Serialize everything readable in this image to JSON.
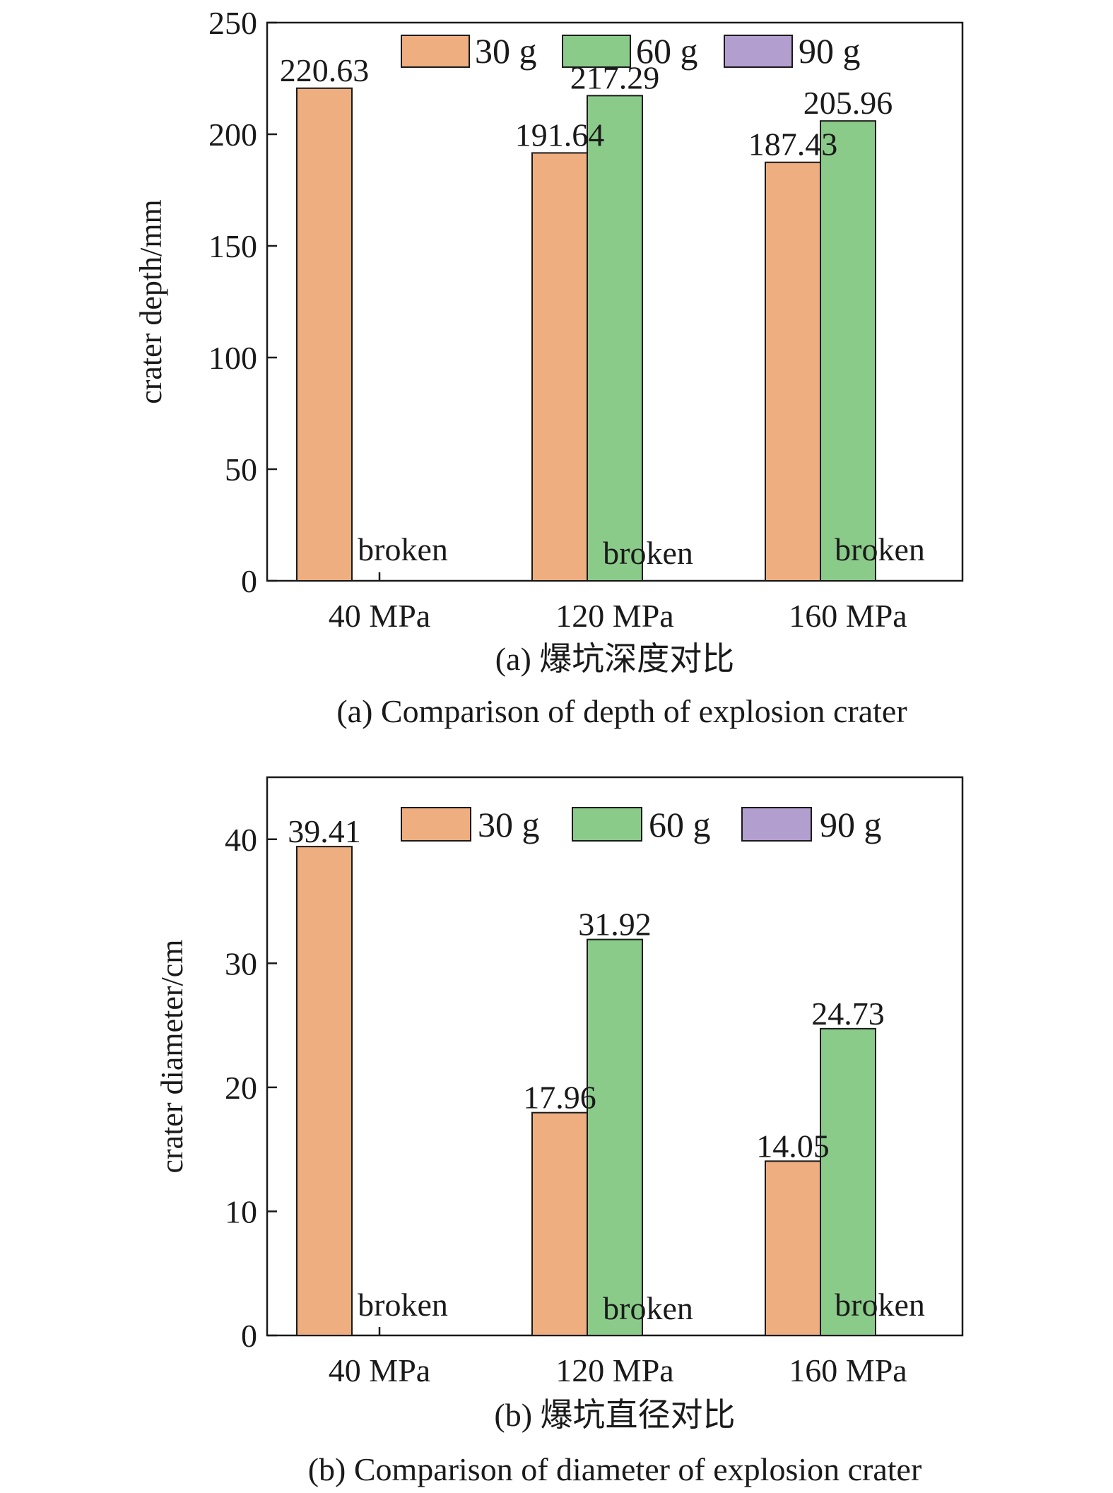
{
  "chart_data": [
    {
      "type": "bar",
      "categories": [
        "40 MPa",
        "120 MPa",
        "160 MPa"
      ],
      "series": [
        {
          "name": "30 g",
          "values": [
            220.63,
            191.64,
            187.43
          ],
          "color": "#EEAE80"
        },
        {
          "name": "60 g",
          "values": [
            null,
            217.29,
            205.96
          ],
          "color": "#8BCB8A"
        },
        {
          "name": "90 g",
          "values": [
            null,
            null,
            null
          ],
          "color": "#B39ED0"
        }
      ],
      "data_labels": [
        {
          "category": "40 MPa",
          "series": "30 g",
          "text": "220.63"
        },
        {
          "category": "120 MPa",
          "series": "30 g",
          "text": "191.64"
        },
        {
          "category": "120 MPa",
          "series": "60 g",
          "text": "217.29"
        },
        {
          "category": "160 MPa",
          "series": "30 g",
          "text": "187.43"
        },
        {
          "category": "160 MPa",
          "series": "60 g",
          "text": "205.96"
        }
      ],
      "annotations": [
        {
          "category": "40 MPa",
          "text": "broken"
        },
        {
          "category": "120 MPa",
          "text": "broken"
        },
        {
          "category": "160 MPa",
          "text": "broken"
        }
      ],
      "ylabel": "crater depth/mm",
      "xlabel": "",
      "ylim": [
        0,
        250
      ],
      "yticks": [
        0,
        50,
        100,
        150,
        200,
        250
      ],
      "legend": "top-right",
      "grid": false,
      "caption_cn": "(a) 爆坑深度对比",
      "caption_en": "(a) Comparison of depth of explosion crater"
    },
    {
      "type": "bar",
      "categories": [
        "40 MPa",
        "120 MPa",
        "160 MPa"
      ],
      "series": [
        {
          "name": "30 g",
          "values": [
            39.41,
            17.96,
            14.05
          ],
          "color": "#EEAE80"
        },
        {
          "name": "60 g",
          "values": [
            null,
            31.92,
            24.73
          ],
          "color": "#8BCB8A"
        },
        {
          "name": "90 g",
          "values": [
            null,
            null,
            null
          ],
          "color": "#B39ED0"
        }
      ],
      "data_labels": [
        {
          "category": "40 MPa",
          "series": "30 g",
          "text": "39.41"
        },
        {
          "category": "120 MPa",
          "series": "30 g",
          "text": "17.96"
        },
        {
          "category": "120 MPa",
          "series": "60 g",
          "text": "31.92"
        },
        {
          "category": "160 MPa",
          "series": "30 g",
          "text": "14.05"
        },
        {
          "category": "160 MPa",
          "series": "60 g",
          "text": "24.73"
        }
      ],
      "annotations": [
        {
          "category": "40 MPa",
          "text": "broken"
        },
        {
          "category": "120 MPa",
          "text": "broken"
        },
        {
          "category": "160 MPa",
          "text": "broken"
        }
      ],
      "ylabel": "crater diameter/cm",
      "xlabel": "",
      "ylim": [
        0,
        45
      ],
      "yticks": [
        0,
        10,
        20,
        30,
        40
      ],
      "legend": "top-right",
      "grid": false,
      "caption_cn": "(b) 爆坑直径对比",
      "caption_en": "(b) Comparison of diameter of explosion crater"
    }
  ]
}
